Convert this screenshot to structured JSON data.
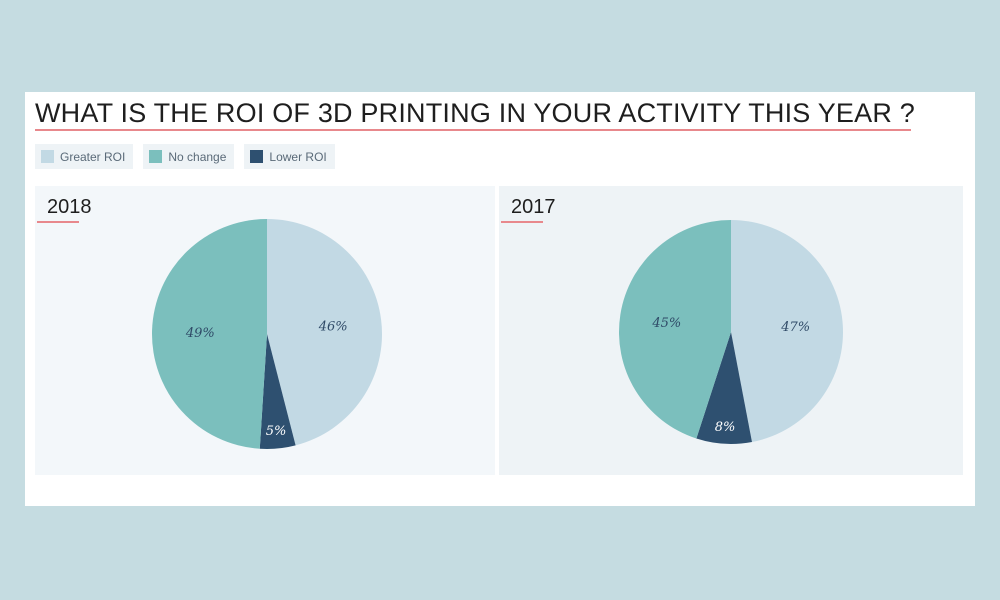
{
  "title": "WHAT IS THE ROI OF 3D PRINTING IN YOUR ACTIVITY THIS YEAR ?",
  "legend": [
    {
      "label": "Greater ROI",
      "color": "#c2d9e4"
    },
    {
      "label": "No change",
      "color": "#7bbfbd"
    },
    {
      "label": "Lower ROI",
      "color": "#2e5070"
    }
  ],
  "chart_data": [
    {
      "type": "pie",
      "title": "2018",
      "categories": [
        "Greater ROI",
        "Lower ROI",
        "No change"
      ],
      "values": [
        46,
        5,
        49
      ],
      "labels": [
        "46%",
        "5%",
        "49%"
      ],
      "colors": [
        "#c2d9e4",
        "#2e5070",
        "#7bbfbd"
      ]
    },
    {
      "type": "pie",
      "title": "2017",
      "categories": [
        "Greater ROI",
        "Lower ROI",
        "No change"
      ],
      "values": [
        47,
        8,
        45
      ],
      "labels": [
        "47%",
        "8%",
        "45%"
      ],
      "colors": [
        "#c2d9e4",
        "#2e5070",
        "#7bbfbd"
      ]
    }
  ]
}
